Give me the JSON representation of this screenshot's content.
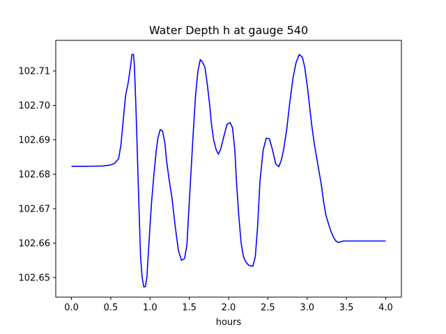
{
  "chart_data": {
    "type": "line",
    "title": "Water Depth h at gauge 540",
    "xlabel": "hours",
    "ylabel": "",
    "xlim": [
      -0.2,
      4.2
    ],
    "ylim": [
      102.6443,
      102.7189
    ],
    "x_ticks": [
      0.0,
      0.5,
      1.0,
      1.5,
      2.0,
      2.5,
      3.0,
      3.5,
      4.0
    ],
    "x_tick_labels": [
      "0.0",
      "0.5",
      "1.0",
      "1.5",
      "2.0",
      "2.5",
      "3.0",
      "3.5",
      "4.0"
    ],
    "y_ticks": [
      102.65,
      102.66,
      102.67,
      102.68,
      102.69,
      102.7,
      102.71
    ],
    "y_tick_labels": [
      "102.65",
      "102.66",
      "102.67",
      "102.68",
      "102.69",
      "102.70",
      "102.71"
    ],
    "grid": false,
    "series": [
      {
        "color": "#0000ff",
        "x": [
          0.0,
          0.2,
          0.4,
          0.5,
          0.55,
          0.6,
          0.63,
          0.66,
          0.69,
          0.72,
          0.75,
          0.77,
          0.79,
          0.8,
          0.82,
          0.84,
          0.86,
          0.88,
          0.9,
          0.92,
          0.94,
          0.96,
          0.98,
          1.0,
          1.02,
          1.05,
          1.08,
          1.1,
          1.13,
          1.16,
          1.19,
          1.21,
          1.24,
          1.28,
          1.32,
          1.36,
          1.4,
          1.44,
          1.47,
          1.49,
          1.52,
          1.55,
          1.58,
          1.61,
          1.64,
          1.67,
          1.7,
          1.73,
          1.76,
          1.78,
          1.81,
          1.84,
          1.87,
          1.9,
          1.94,
          1.98,
          2.02,
          2.05,
          2.08,
          2.1,
          2.13,
          2.16,
          2.19,
          2.22,
          2.25,
          2.28,
          2.31,
          2.34,
          2.37,
          2.4,
          2.44,
          2.48,
          2.52,
          2.56,
          2.6,
          2.64,
          2.67,
          2.7,
          2.74,
          2.78,
          2.82,
          2.86,
          2.9,
          2.94,
          2.97,
          3.0,
          3.03,
          3.06,
          3.09,
          3.12,
          3.15,
          3.18,
          3.21,
          3.24,
          3.28,
          3.31,
          3.34,
          3.37,
          3.4,
          3.43,
          3.46,
          3.5,
          3.55,
          3.6,
          3.65,
          3.7,
          3.75,
          3.8,
          3.85,
          3.9,
          3.95,
          4.0
        ],
        "y": [
          102.6823,
          102.6823,
          102.6824,
          102.6827,
          102.6832,
          102.6845,
          102.6885,
          102.696,
          102.703,
          102.7063,
          102.711,
          102.7148,
          102.7148,
          102.712,
          102.7,
          102.685,
          102.67,
          102.656,
          102.65,
          102.6473,
          102.6473,
          102.65,
          102.6575,
          102.665,
          102.672,
          102.68,
          102.687,
          102.6905,
          102.693,
          102.6925,
          102.689,
          102.684,
          102.679,
          102.673,
          102.665,
          102.658,
          102.655,
          102.6555,
          102.6595,
          102.668,
          102.68,
          102.692,
          102.703,
          102.71,
          102.7133,
          102.7125,
          102.711,
          102.706,
          102.7,
          102.695,
          102.69,
          102.6873,
          102.6858,
          102.6873,
          102.691,
          102.6945,
          102.695,
          102.6935,
          102.687,
          102.678,
          102.668,
          102.66,
          102.656,
          102.6545,
          102.6537,
          102.6533,
          102.6533,
          102.656,
          102.665,
          102.678,
          102.687,
          102.6905,
          102.6903,
          102.687,
          102.683,
          102.6822,
          102.684,
          102.687,
          102.693,
          102.701,
          102.708,
          102.7125,
          102.7148,
          102.714,
          102.711,
          102.706,
          102.7,
          102.694,
          102.689,
          102.685,
          102.681,
          102.677,
          102.672,
          102.668,
          102.665,
          102.663,
          102.6615,
          102.6605,
          102.6602,
          102.6604,
          102.6606,
          102.6606,
          102.6606,
          102.6606,
          102.6606,
          102.6606,
          102.6606,
          102.6606,
          102.6606,
          102.6606,
          102.6606,
          102.6606
        ]
      }
    ]
  }
}
